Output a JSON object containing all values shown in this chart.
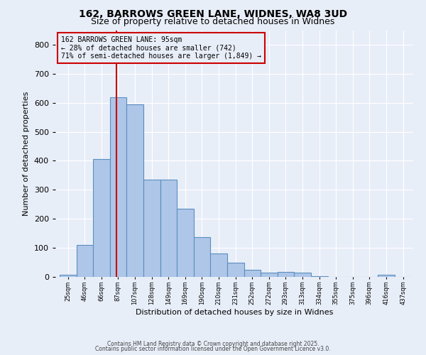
{
  "title_line1": "162, BARROWS GREEN LANE, WIDNES, WA8 3UD",
  "title_line2": "Size of property relative to detached houses in Widnes",
  "xlabel": "Distribution of detached houses by size in Widnes",
  "ylabel": "Number of detached properties",
  "bar_left_edges": [
    25,
    46,
    66,
    87,
    107,
    128,
    149,
    169,
    190,
    210,
    231,
    252,
    272,
    293,
    313,
    334,
    355,
    375,
    396,
    416,
    437
  ],
  "bar_widths": [
    21,
    20,
    21,
    20,
    21,
    21,
    20,
    21,
    20,
    21,
    21,
    20,
    21,
    20,
    21,
    21,
    20,
    21,
    20,
    21,
    21
  ],
  "bar_heights": [
    8,
    110,
    405,
    620,
    595,
    335,
    335,
    235,
    138,
    80,
    50,
    25,
    15,
    17,
    15,
    3,
    0,
    0,
    0,
    8,
    0
  ],
  "bar_color": "#aec6e8",
  "bar_edgecolor": "#5a8fc0",
  "bar_linewidth": 0.8,
  "tick_labels": [
    "25sqm",
    "46sqm",
    "66sqm",
    "87sqm",
    "107sqm",
    "128sqm",
    "149sqm",
    "169sqm",
    "190sqm",
    "210sqm",
    "231sqm",
    "252sqm",
    "272sqm",
    "293sqm",
    "313sqm",
    "334sqm",
    "355sqm",
    "375sqm",
    "396sqm",
    "416sqm",
    "437sqm"
  ],
  "red_line_x": 95,
  "red_line_color": "#cc0000",
  "ylim": [
    0,
    850
  ],
  "xlim": [
    20,
    460
  ],
  "annotation_text": "162 BARROWS GREEN LANE: 95sqm\n← 28% of detached houses are smaller (742)\n71% of semi-detached houses are larger (1,849) →",
  "annotation_box_color": "#cc0000",
  "bg_color": "#e8eef8",
  "grid_color": "#c8d4e8",
  "footer_line1": "Contains HM Land Registry data © Crown copyright and database right 2025.",
  "footer_line2": "Contains public sector information licensed under the Open Government Licence v3.0."
}
